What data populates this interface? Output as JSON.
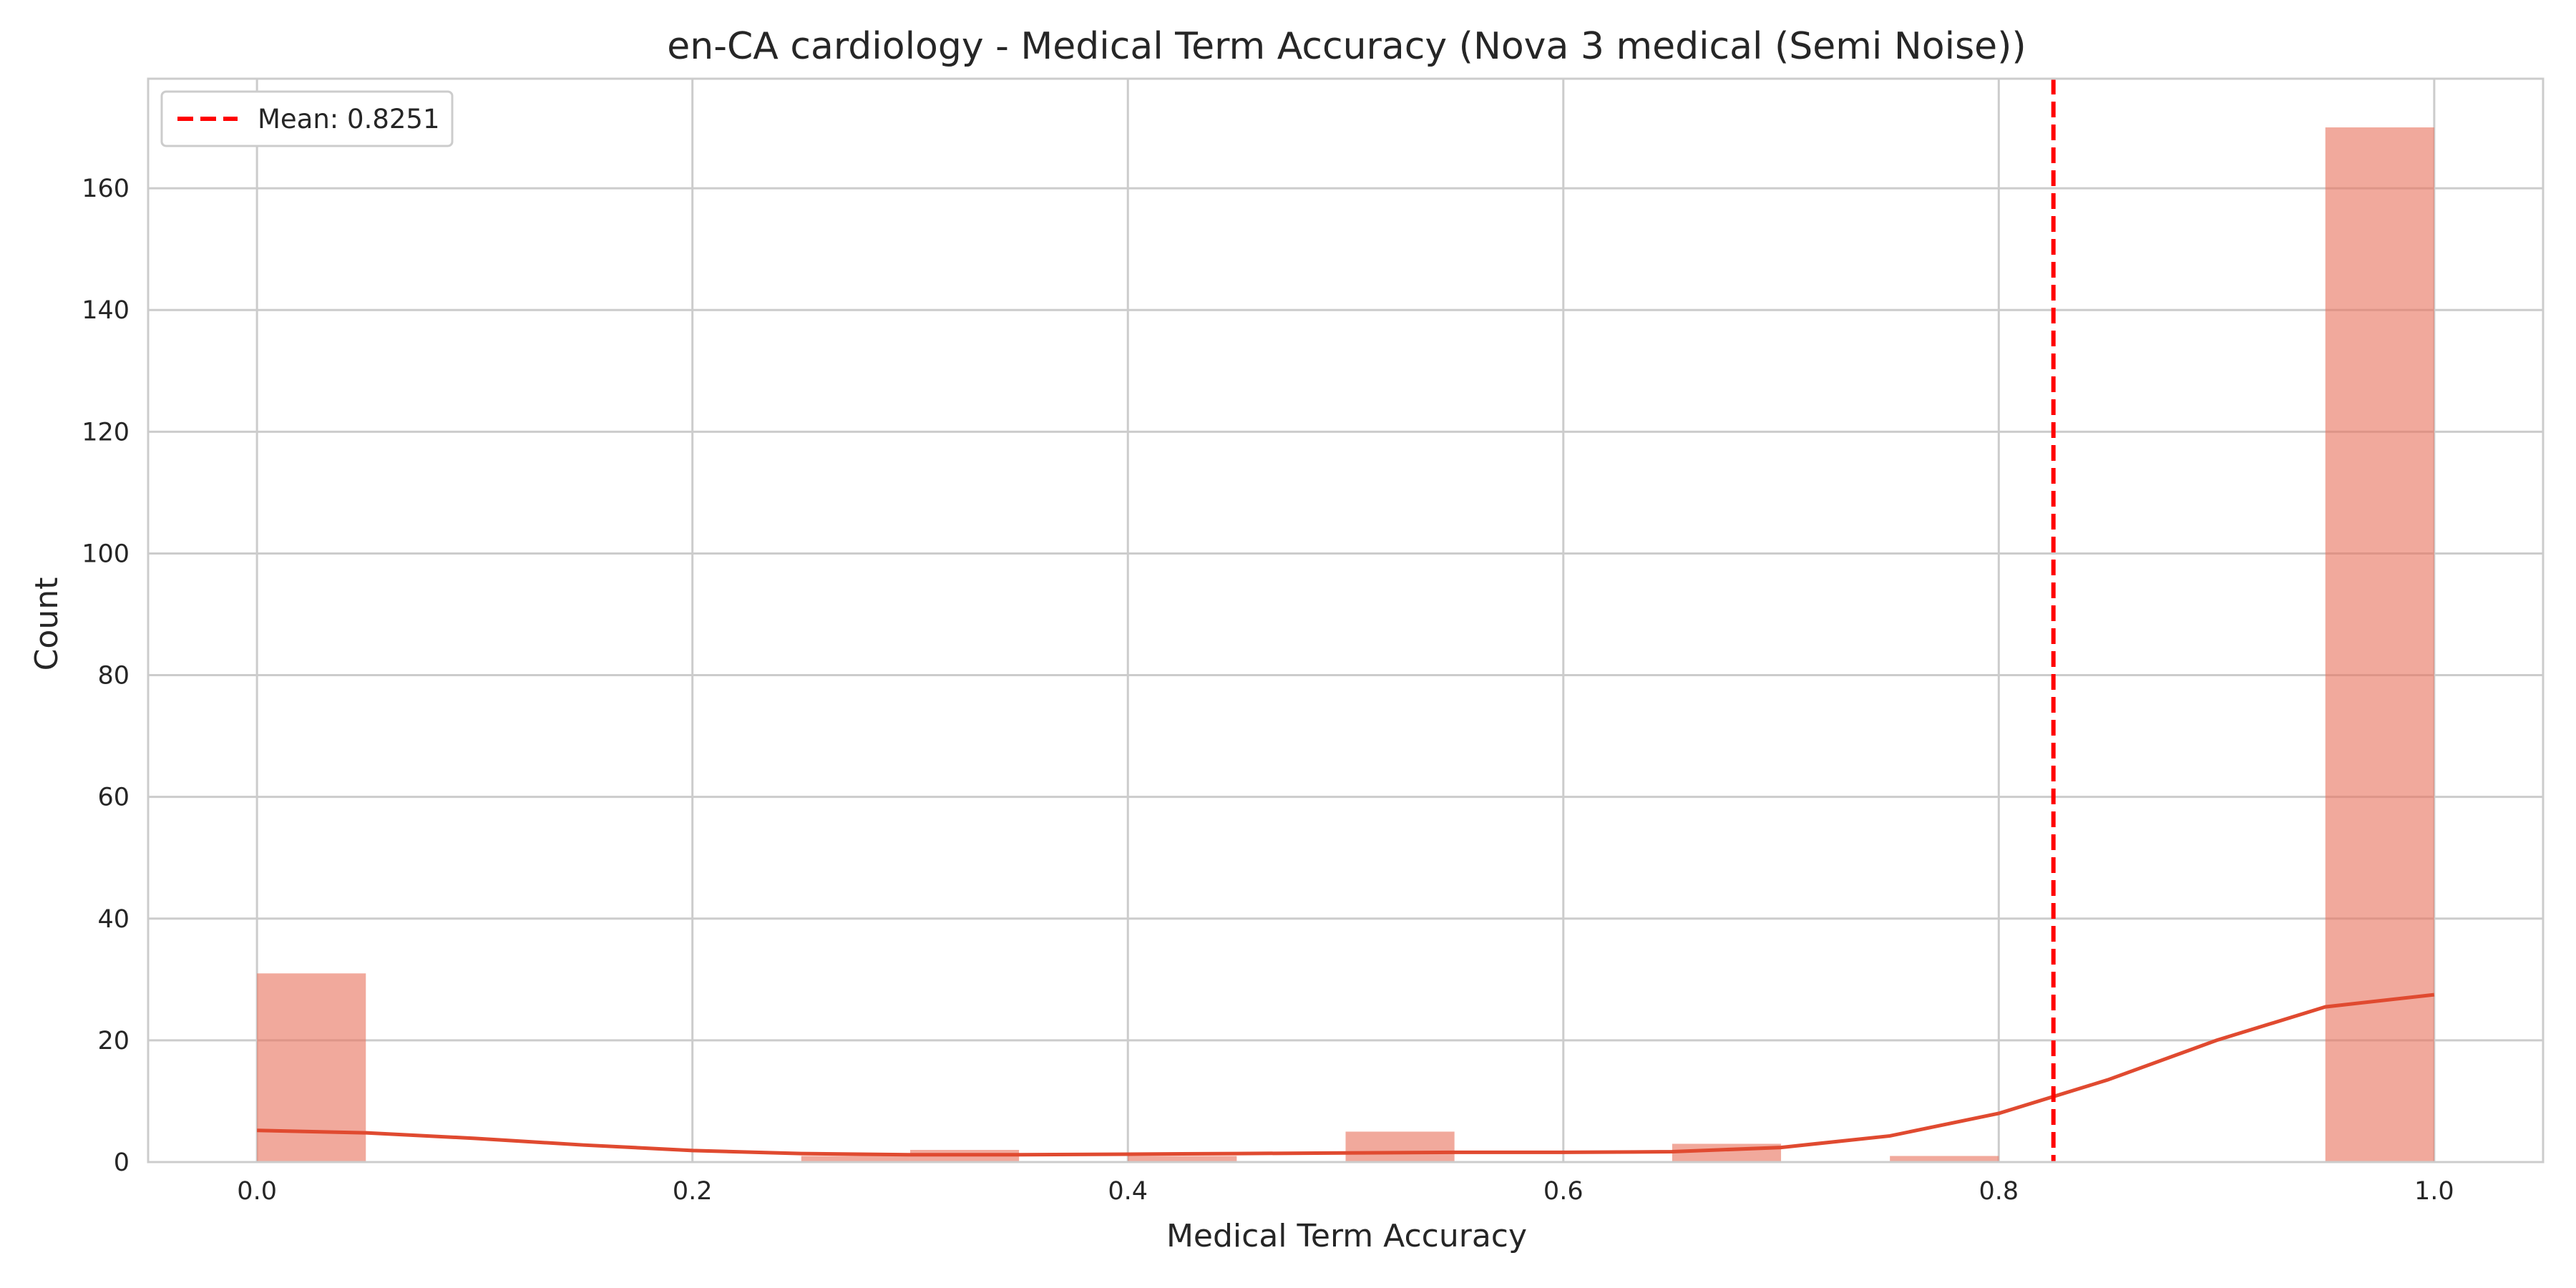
{
  "chart_data": {
    "type": "bar",
    "title": "en-CA cardiology - Medical Term Accuracy (Nova 3 medical (Semi Noise))",
    "xlabel": "Medical Term Accuracy",
    "ylabel": "Count",
    "xlim": [
      -0.05,
      1.05
    ],
    "ylim": [
      0,
      178
    ],
    "xticks": [
      "0.0",
      "0.2",
      "0.4",
      "0.6",
      "0.8",
      "1.0"
    ],
    "yticks": [
      "0",
      "20",
      "40",
      "60",
      "80",
      "100",
      "120",
      "140",
      "160"
    ],
    "grid": true,
    "legend_position": "top-left",
    "bins": [
      {
        "x0": 0.0,
        "x1": 0.05,
        "count": 31
      },
      {
        "x0": 0.25,
        "x1": 0.3,
        "count": 1
      },
      {
        "x0": 0.3,
        "x1": 0.35,
        "count": 2
      },
      {
        "x0": 0.4,
        "x1": 0.45,
        "count": 1
      },
      {
        "x0": 0.5,
        "x1": 0.55,
        "count": 5
      },
      {
        "x0": 0.65,
        "x1": 0.7,
        "count": 3
      },
      {
        "x0": 0.75,
        "x1": 0.8,
        "count": 1
      },
      {
        "x0": 0.95,
        "x1": 1.0,
        "count": 170
      }
    ],
    "kde": {
      "x": [
        0.0,
        0.05,
        0.1,
        0.15,
        0.2,
        0.25,
        0.3,
        0.35,
        0.4,
        0.45,
        0.5,
        0.55,
        0.6,
        0.65,
        0.7,
        0.75,
        0.8,
        0.85,
        0.9,
        0.95,
        1.0
      ],
      "y": [
        5.2,
        4.8,
        3.9,
        2.8,
        1.9,
        1.4,
        1.2,
        1.2,
        1.3,
        1.4,
        1.5,
        1.6,
        1.6,
        1.7,
        2.4,
        4.3,
        8.0,
        13.5,
        20.0,
        25.5,
        27.5
      ]
    },
    "mean": {
      "value": 0.8251,
      "label": "Mean: 0.8251"
    },
    "colors": {
      "bar": "#e8705a",
      "bar_opacity": 0.6,
      "kde": "#e04a30",
      "mean": "#ff0000",
      "grid": "#cccccc",
      "frame": "#cccccc"
    }
  }
}
